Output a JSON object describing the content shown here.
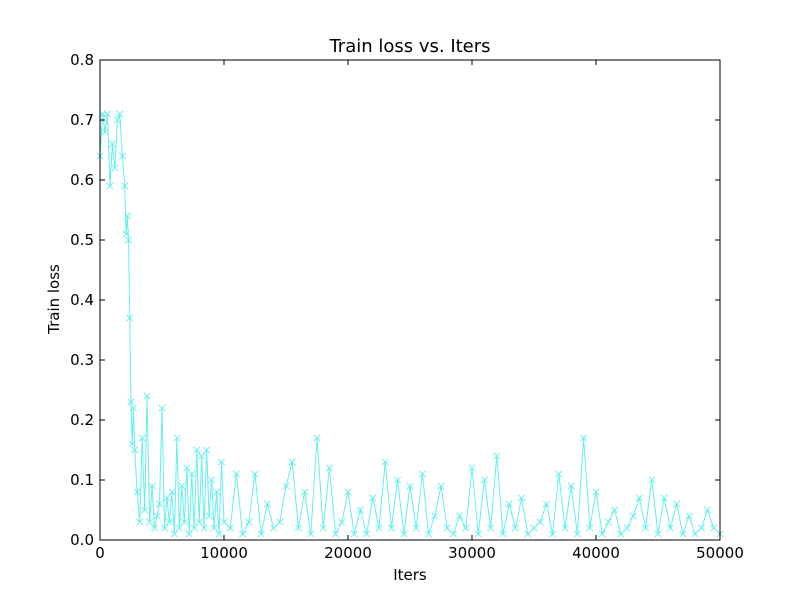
{
  "chart_data": {
    "type": "line",
    "title": "Train loss  vs. Iters",
    "xlabel": "Iters",
    "ylabel": "Train loss",
    "xlim": [
      0,
      50000
    ],
    "ylim": [
      0.0,
      0.8
    ],
    "xticks": [
      0,
      10000,
      20000,
      30000,
      40000,
      50000
    ],
    "xtick_labels": [
      "0",
      "10000",
      "20000",
      "30000",
      "40000",
      "50000"
    ],
    "yticks": [
      0.0,
      0.1,
      0.2,
      0.3,
      0.4,
      0.5,
      0.6,
      0.7,
      0.8
    ],
    "ytick_labels": [
      "0.0",
      "0.1",
      "0.2",
      "0.3",
      "0.4",
      "0.5",
      "0.6",
      "0.7",
      "0.8"
    ],
    "grid": false,
    "marker": "x",
    "series": [
      {
        "color": "#66eeee",
        "x": [
          0,
          200,
          400,
          600,
          800,
          1000,
          1200,
          1400,
          1600,
          1800,
          2000,
          2100,
          2200,
          2300,
          2400,
          2500,
          2600,
          2700,
          2800,
          3000,
          3200,
          3400,
          3600,
          3800,
          4000,
          4200,
          4400,
          4600,
          4800,
          5000,
          5200,
          5400,
          5600,
          5800,
          6000,
          6200,
          6400,
          6600,
          6800,
          7000,
          7200,
          7400,
          7600,
          7800,
          8000,
          8200,
          8400,
          8600,
          8800,
          9000,
          9200,
          9400,
          9600,
          9800,
          10000,
          10500,
          11000,
          11500,
          12000,
          12500,
          13000,
          13500,
          14000,
          14500,
          15000,
          15500,
          16000,
          16500,
          17000,
          17500,
          18000,
          18500,
          19000,
          19500,
          20000,
          20500,
          21000,
          21500,
          22000,
          22500,
          23000,
          23500,
          24000,
          24500,
          25000,
          25500,
          26000,
          26500,
          27000,
          27500,
          28000,
          28500,
          29000,
          29500,
          30000,
          30500,
          31000,
          31500,
          32000,
          32500,
          33000,
          33500,
          34000,
          34500,
          35000,
          35500,
          36000,
          36500,
          37000,
          37500,
          38000,
          38500,
          39000,
          39500,
          40000,
          40500,
          41000,
          41500,
          42000,
          42500,
          43000,
          43500,
          44000,
          44500,
          45000,
          45500,
          46000,
          46500,
          47000,
          47500,
          48000,
          48500,
          49000,
          49500,
          50000
        ],
        "y": [
          0.64,
          0.71,
          0.68,
          0.71,
          0.59,
          0.66,
          0.62,
          0.7,
          0.71,
          0.64,
          0.59,
          0.51,
          0.54,
          0.5,
          0.37,
          0.23,
          0.16,
          0.22,
          0.15,
          0.08,
          0.03,
          0.17,
          0.05,
          0.24,
          0.03,
          0.09,
          0.02,
          0.04,
          0.06,
          0.22,
          0.02,
          0.07,
          0.03,
          0.08,
          0.01,
          0.17,
          0.02,
          0.09,
          0.03,
          0.12,
          0.01,
          0.11,
          0.02,
          0.15,
          0.03,
          0.14,
          0.02,
          0.15,
          0.04,
          0.1,
          0.02,
          0.08,
          0.01,
          0.13,
          0.03,
          0.02,
          0.11,
          0.01,
          0.03,
          0.11,
          0.01,
          0.06,
          0.02,
          0.03,
          0.09,
          0.13,
          0.02,
          0.08,
          0.01,
          0.17,
          0.02,
          0.12,
          0.01,
          0.03,
          0.08,
          0.01,
          0.05,
          0.01,
          0.07,
          0.02,
          0.13,
          0.02,
          0.1,
          0.01,
          0.09,
          0.02,
          0.11,
          0.01,
          0.04,
          0.09,
          0.02,
          0.01,
          0.04,
          0.02,
          0.12,
          0.01,
          0.1,
          0.02,
          0.14,
          0.01,
          0.06,
          0.02,
          0.07,
          0.01,
          0.02,
          0.03,
          0.06,
          0.01,
          0.11,
          0.02,
          0.09,
          0.01,
          0.17,
          0.02,
          0.08,
          0.01,
          0.03,
          0.05,
          0.01,
          0.02,
          0.04,
          0.07,
          0.02,
          0.1,
          0.01,
          0.07,
          0.02,
          0.06,
          0.01,
          0.04,
          0.01,
          0.02,
          0.05,
          0.02,
          0.01
        ]
      }
    ]
  }
}
